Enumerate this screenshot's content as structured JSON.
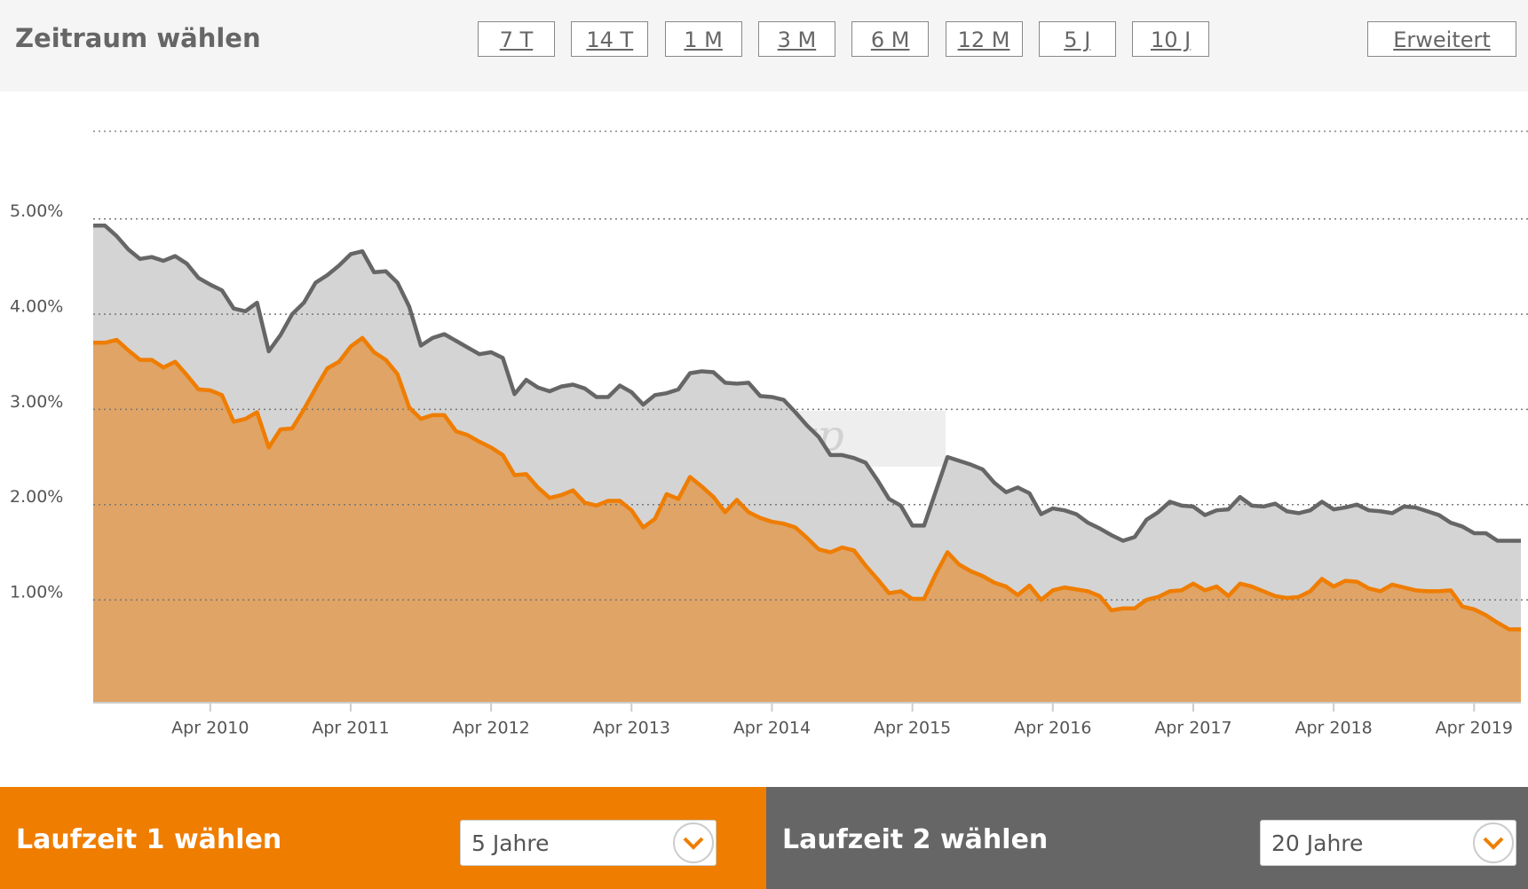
{
  "header": {
    "title": "Zeitraum wählen",
    "ranges": [
      "7 T",
      "14 T",
      "1 M",
      "3 M",
      "6 M",
      "12 M",
      "5 J",
      "10 J"
    ],
    "advanced": "Erweitert"
  },
  "chart_data": {
    "type": "area",
    "watermark": "interhyp",
    "x": [
      "2009-06",
      "2009-07",
      "2009-08",
      "2009-09",
      "2009-10",
      "2009-11",
      "2009-12",
      "2010-01",
      "2010-02",
      "2010-03",
      "2010-04",
      "2010-05",
      "2010-06",
      "2010-07",
      "2010-08",
      "2010-09",
      "2010-10",
      "2010-11",
      "2010-12",
      "2011-01",
      "2011-02",
      "2011-03",
      "2011-04",
      "2011-05",
      "2011-06",
      "2011-07",
      "2011-08",
      "2011-09",
      "2011-10",
      "2011-11",
      "2011-12",
      "2012-01",
      "2012-02",
      "2012-03",
      "2012-04",
      "2012-05",
      "2012-06",
      "2012-07",
      "2012-08",
      "2012-09",
      "2012-10",
      "2012-11",
      "2012-12",
      "2013-01",
      "2013-02",
      "2013-03",
      "2013-04",
      "2013-05",
      "2013-06",
      "2013-07",
      "2013-08",
      "2013-09",
      "2013-10",
      "2013-11",
      "2013-12",
      "2014-01",
      "2014-02",
      "2014-03",
      "2014-04",
      "2014-05",
      "2014-06",
      "2014-07",
      "2014-08",
      "2014-09",
      "2014-10",
      "2014-11",
      "2014-12",
      "2015-01",
      "2015-02",
      "2015-03",
      "2015-04",
      "2015-05",
      "2015-06",
      "2015-07",
      "2015-08",
      "2015-09",
      "2015-10",
      "2015-11",
      "2015-12",
      "2016-01",
      "2016-02",
      "2016-03",
      "2016-04",
      "2016-05",
      "2016-06",
      "2016-07",
      "2016-08",
      "2016-09",
      "2016-10",
      "2016-11",
      "2016-12",
      "2017-01",
      "2017-02",
      "2017-03",
      "2017-04",
      "2017-05",
      "2017-06",
      "2017-07",
      "2017-08",
      "2017-09",
      "2017-10",
      "2017-11",
      "2017-12",
      "2018-01",
      "2018-02",
      "2018-03",
      "2018-04",
      "2018-05",
      "2018-06",
      "2018-07",
      "2018-08",
      "2018-09",
      "2018-10",
      "2018-11",
      "2018-12",
      "2019-01",
      "2019-02",
      "2019-03",
      "2019-04",
      "2019-05",
      "2019-06",
      "2019-07",
      "2019-08"
    ],
    "series": [
      {
        "color": "#666666",
        "fill": "#d4d4d4",
        "values": [
          4.93,
          4.93,
          4.82,
          4.68,
          4.58,
          4.6,
          4.56,
          4.61,
          4.53,
          4.38,
          4.31,
          4.25,
          4.06,
          4.03,
          4.12,
          3.61,
          3.78,
          4.0,
          4.12,
          4.33,
          4.41,
          4.51,
          4.63,
          4.66,
          4.44,
          4.45,
          4.33,
          4.08,
          3.67,
          3.75,
          3.79,
          3.72,
          3.65,
          3.58,
          3.6,
          3.54,
          3.16,
          3.31,
          3.23,
          3.19,
          3.24,
          3.26,
          3.22,
          3.13,
          3.13,
          3.25,
          3.18,
          3.05,
          3.15,
          3.17,
          3.21,
          3.38,
          3.4,
          3.39,
          3.28,
          3.27,
          3.28,
          3.14,
          3.13,
          3.1,
          2.97,
          2.83,
          2.71,
          2.52,
          2.52,
          2.49,
          2.44,
          2.26,
          2.06,
          1.99,
          1.78,
          1.78,
          2.14,
          2.5,
          2.46,
          2.42,
          2.37,
          2.23,
          2.13,
          2.18,
          2.12,
          1.9,
          1.96,
          1.94,
          1.9,
          1.81,
          1.75,
          1.68,
          1.62,
          1.66,
          1.84,
          1.92,
          2.03,
          1.99,
          1.98,
          1.89,
          1.94,
          1.95,
          2.08,
          1.99,
          1.98,
          2.01,
          1.93,
          1.91,
          1.94,
          2.03,
          1.95,
          1.97,
          2.0,
          1.94,
          1.93,
          1.91,
          1.98,
          1.97,
          1.93,
          1.89,
          1.81,
          1.77,
          1.7,
          1.7,
          1.62,
          1.62,
          1.62
        ]
      },
      {
        "color": "#ef7d00",
        "fill": "#dfa466",
        "values": [
          3.7,
          3.7,
          3.73,
          3.62,
          3.52,
          3.52,
          3.44,
          3.5,
          3.36,
          3.21,
          3.2,
          3.15,
          2.87,
          2.9,
          2.97,
          2.6,
          2.79,
          2.8,
          3.0,
          3.22,
          3.43,
          3.5,
          3.66,
          3.75,
          3.6,
          3.52,
          3.37,
          3.02,
          2.9,
          2.94,
          2.94,
          2.77,
          2.73,
          2.66,
          2.6,
          2.52,
          2.31,
          2.32,
          2.18,
          2.07,
          2.1,
          2.15,
          2.02,
          1.99,
          2.04,
          2.04,
          1.94,
          1.76,
          1.85,
          2.11,
          2.06,
          2.29,
          2.19,
          2.08,
          1.92,
          2.05,
          1.92,
          1.86,
          1.82,
          1.8,
          1.76,
          1.65,
          1.53,
          1.5,
          1.55,
          1.52,
          1.36,
          1.22,
          1.07,
          1.09,
          1.01,
          1.01,
          1.27,
          1.5,
          1.37,
          1.3,
          1.25,
          1.18,
          1.14,
          1.05,
          1.15,
          1.0,
          1.1,
          1.13,
          1.11,
          1.09,
          1.04,
          0.89,
          0.91,
          0.91,
          1.0,
          1.03,
          1.09,
          1.1,
          1.17,
          1.1,
          1.14,
          1.04,
          1.17,
          1.14,
          1.09,
          1.04,
          1.02,
          1.03,
          1.09,
          1.22,
          1.14,
          1.2,
          1.19,
          1.12,
          1.09,
          1.16,
          1.13,
          1.1,
          1.09,
          1.09,
          1.1,
          0.93,
          0.9,
          0.84,
          0.76,
          0.69,
          0.69
        ]
      }
    ],
    "xlim": [
      "2009-06",
      "2019-08"
    ],
    "xticks": [
      {
        "value": "2010-04",
        "label": "Apr 2010"
      },
      {
        "value": "2011-04",
        "label": "Apr 2011"
      },
      {
        "value": "2012-04",
        "label": "Apr 2012"
      },
      {
        "value": "2013-04",
        "label": "Apr 2013"
      },
      {
        "value": "2014-04",
        "label": "Apr 2014"
      },
      {
        "value": "2015-04",
        "label": "Apr 2015"
      },
      {
        "value": "2016-04",
        "label": "Apr 2016"
      },
      {
        "value": "2017-04",
        "label": "Apr 2017"
      },
      {
        "value": "2018-04",
        "label": "Apr 2018"
      },
      {
        "value": "2019-04",
        "label": "Apr 2019"
      }
    ],
    "ylim": [
      -0.08,
      5.92
    ],
    "yticks": [
      {
        "value": 1,
        "label": "1.00%"
      },
      {
        "value": 2,
        "label": "2.00%"
      },
      {
        "value": 3,
        "label": "3.00%"
      },
      {
        "value": 4,
        "label": "4.00%"
      },
      {
        "value": 5,
        "label": "5.00%"
      }
    ],
    "grid": true
  },
  "footer": {
    "left": {
      "label": "Laufzeit 1 wählen",
      "value": "5 Jahre"
    },
    "right": {
      "label": "Laufzeit 2 wählen",
      "value": "20 Jahre"
    }
  }
}
